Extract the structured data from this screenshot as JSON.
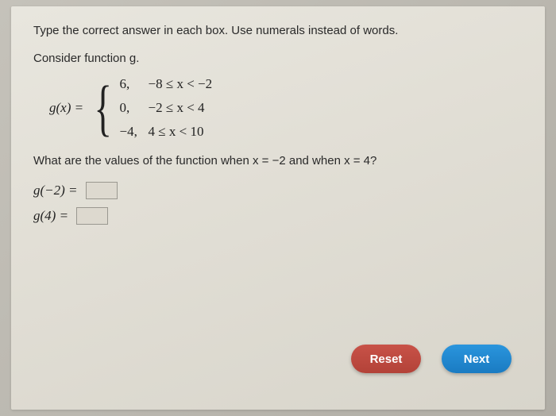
{
  "instructions": "Type the correct answer in each box. Use numerals instead of words.",
  "consider": "Consider function g.",
  "func": {
    "lhs": "g(x)  =",
    "cases": [
      {
        "value": "6,",
        "condition": "−8  ≤  x  <  −2"
      },
      {
        "value": "0,",
        "condition": "−2  ≤  x  <  4"
      },
      {
        "value": "−4,",
        "condition": "4  ≤  x  <  10"
      }
    ]
  },
  "question": "What are the values of the function when  x  =  −2 and when  x  =  4?",
  "answers": [
    {
      "label": "g(−2)  ="
    },
    {
      "label": "g(4)  ="
    }
  ],
  "buttons": {
    "reset": "Reset",
    "next": "Next"
  },
  "colors": {
    "reset_bg": "#b84a40",
    "next_bg": "#2289d1"
  }
}
